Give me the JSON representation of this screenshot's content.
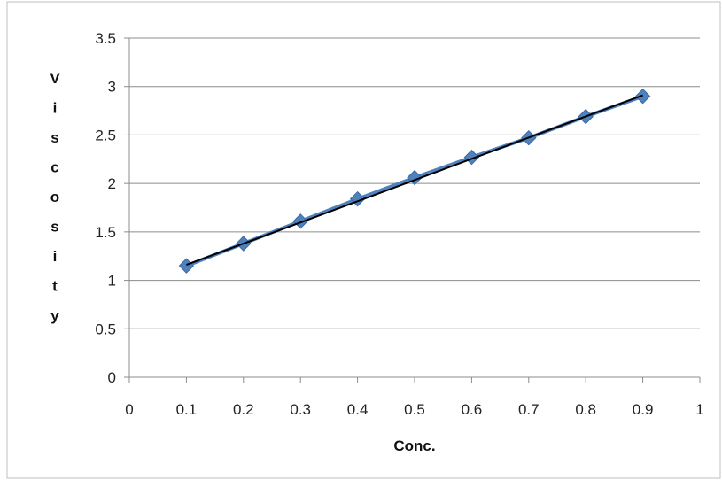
{
  "chart_data": {
    "type": "line",
    "title": "",
    "xlabel": "Conc.",
    "ylabel": "Viscosity",
    "xlim": [
      0,
      1
    ],
    "ylim": [
      0,
      3.5
    ],
    "x_ticks": [
      "0",
      "0.1",
      "0.2",
      "0.3",
      "0.4",
      "0.5",
      "0.6",
      "0.7",
      "0.8",
      "0.9",
      "1"
    ],
    "y_ticks": [
      "0",
      "0.5",
      "1",
      "1.5",
      "2",
      "2.5",
      "3",
      "3.5"
    ],
    "grid": "horizontal",
    "legend": "none",
    "series": [
      {
        "x": [
          0.1,
          0.2,
          0.3,
          0.4,
          0.5,
          0.6,
          0.7,
          0.8,
          0.9
        ],
        "y": [
          1.15,
          1.38,
          1.61,
          1.84,
          2.06,
          2.27,
          2.47,
          2.69,
          2.9
        ],
        "marker": "diamond",
        "color": "#4f81bd"
      }
    ],
    "trendline": {
      "type": "linear",
      "x": [
        0.1,
        0.9
      ],
      "y": [
        1.16,
        2.91
      ],
      "color": "#000000"
    }
  }
}
